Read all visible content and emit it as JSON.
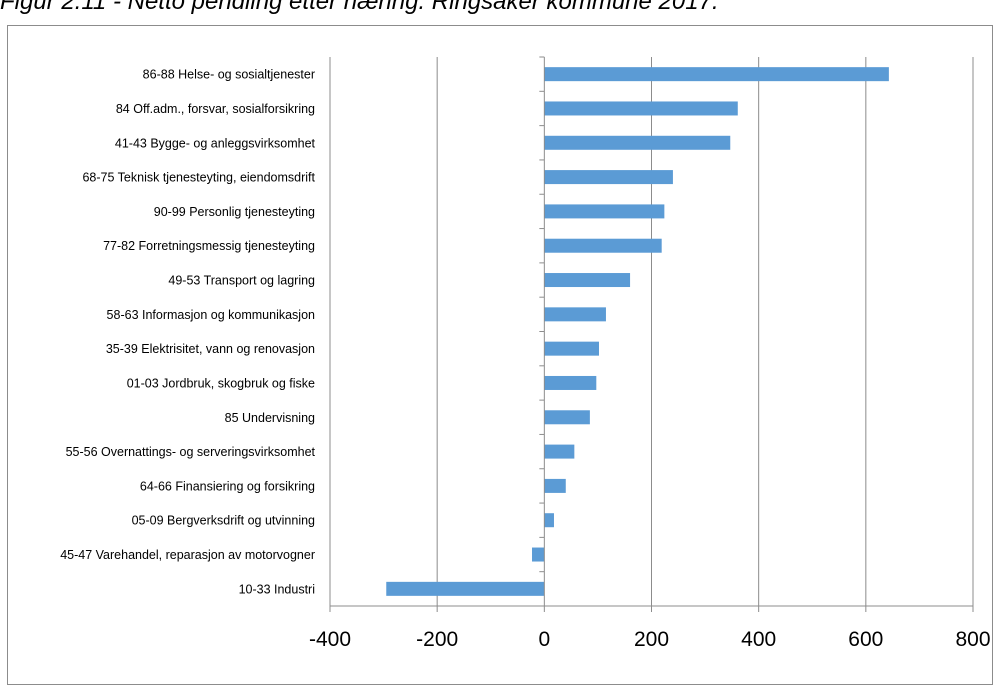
{
  "figure": {
    "caption": "Figur 2.11 - Netto pendling etter næring. Ringsaker kommune 2017."
  },
  "chart_data": {
    "type": "bar",
    "orientation": "horizontal",
    "title": "",
    "xlabel": "",
    "ylabel": "",
    "categories": [
      "86-88 Helse- og sosialtjenester",
      "84 Off.adm., forsvar, sosialforsikring",
      "41-43 Bygge- og anleggsvirksomhet",
      "68-75 Teknisk tjenesteyting, eiendomsdrift",
      "90-99 Personlig tjenesteyting",
      "77-82 Forretningsmessig tjenesteyting",
      "49-53 Transport og lagring",
      "58-63 Informasjon og kommunikasjon",
      "35-39 Elektrisitet, vann og renovasjon",
      "01-03 Jordbruk, skogbruk og fiske",
      "85 Undervisning",
      "55-56 Overnattings- og serveringsvirksomhet",
      "64-66 Finansiering og forsikring",
      "05-09 Bergverksdrift og utvinning",
      "45-47 Varehandel, reparasjon av motorvogner",
      "10-33 Industri"
    ],
    "values": [
      643,
      361,
      347,
      240,
      224,
      219,
      160,
      115,
      102,
      97,
      85,
      56,
      40,
      18,
      -23,
      -295
    ],
    "xlim": [
      -400,
      800
    ],
    "xticks": [
      -400,
      -200,
      0,
      200,
      400,
      600,
      800
    ],
    "grid": "vertical",
    "legend": "none",
    "bar_color": "#5b9bd5"
  }
}
